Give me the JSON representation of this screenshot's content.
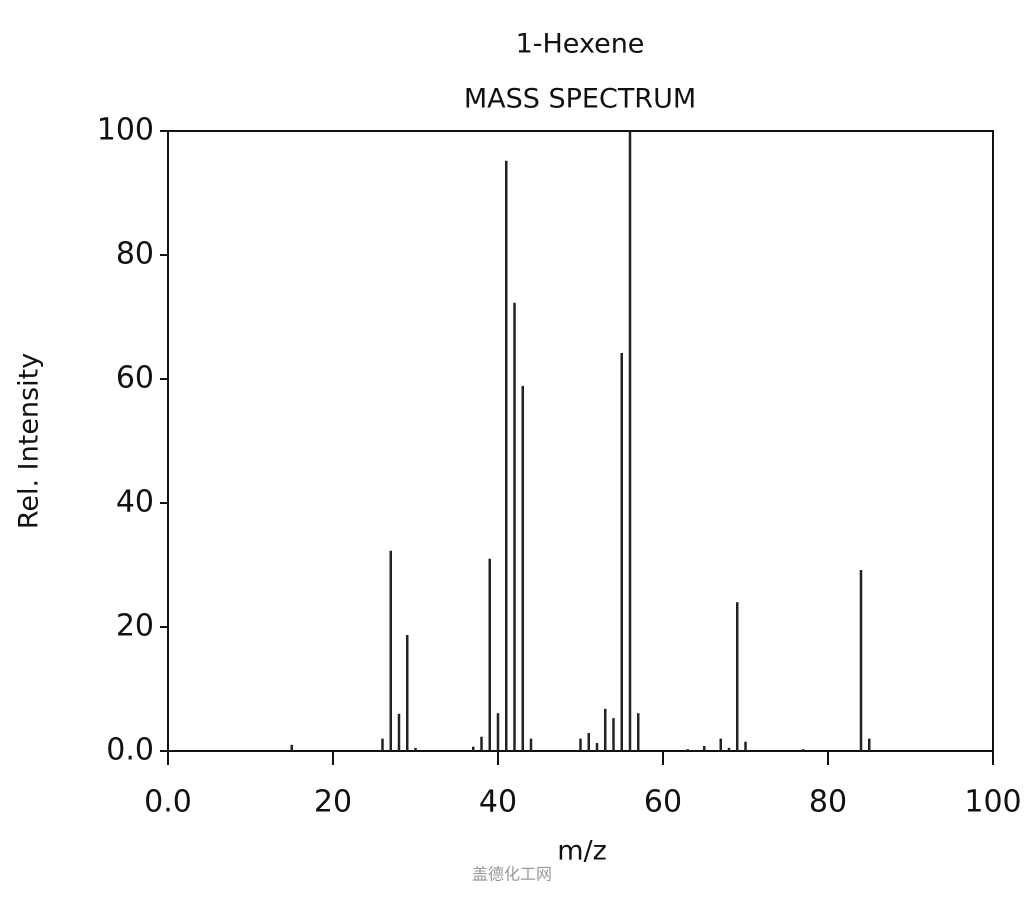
{
  "chart_data": {
    "type": "bar",
    "title": "1-Hexene",
    "subtitle": "MASS SPECTRUM",
    "x_label": "m/z",
    "y_label": "Rel. Intensity",
    "watermark": "盖德化工网",
    "color": "#222222",
    "x": [
      15,
      26,
      27,
      28,
      29,
      30,
      37,
      38,
      39,
      40,
      41,
      42,
      43,
      44,
      50,
      51,
      52,
      53,
      54,
      55,
      56,
      57,
      63,
      65,
      67,
      68,
      69,
      70,
      77,
      84,
      85
    ],
    "values": [
      1,
      2,
      32.3,
      6,
      18.7,
      0.5,
      0.7,
      2.3,
      31,
      6.1,
      95.2,
      72.3,
      58.9,
      2,
      2,
      2.9,
      1.3,
      6.8,
      5.3,
      64.2,
      100,
      6.1,
      0.3,
      0.8,
      2,
      0.5,
      24,
      1.5,
      0.3,
      29.2,
      2
    ],
    "xlim": [
      0,
      100
    ],
    "ylim": [
      0,
      100
    ],
    "xticks": [
      {
        "value": 0,
        "label": "0.0"
      },
      20,
      40,
      60,
      80,
      100
    ],
    "yticks": [
      {
        "value": 0,
        "label": "0.0"
      },
      20,
      40,
      60,
      80,
      100
    ]
  }
}
